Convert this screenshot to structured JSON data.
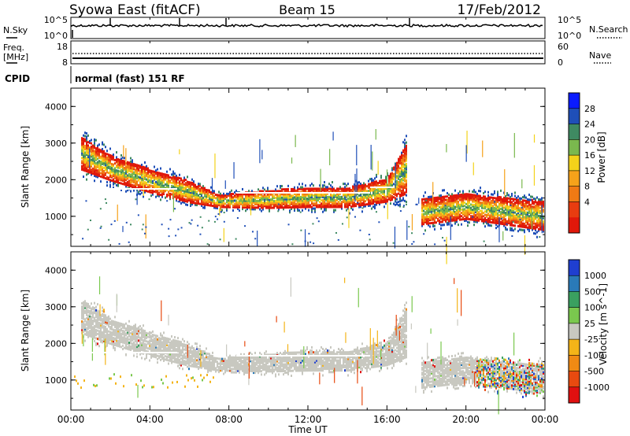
{
  "header": {
    "title_left": "Syowa East (fitACF)",
    "title_center": "Beam 15",
    "title_right": "17/Feb/2012"
  },
  "aux_panels": {
    "nsky_label": "N.Sky",
    "nsky_ticks": [
      "10^5",
      "10^0"
    ],
    "nsearch_label": "N.Search",
    "nsearch_ticks": [
      "10^5",
      "10^0"
    ],
    "freq_label_1": "Freq.",
    "freq_label_2": "[MHz]",
    "freq_ticks": [
      "18",
      "8"
    ],
    "nave_label": "Nave",
    "nave_ticks": [
      "60",
      "0"
    ],
    "cpid_label": "CPID",
    "cpid_text": "normal (fast) 151 RF"
  },
  "chart_data": [
    {
      "type": "heatmap",
      "name": "power",
      "ylabel": "Slant Range [km]",
      "ylim": [
        180,
        4500
      ],
      "yticks": [
        "4000",
        "3000",
        "2000",
        "1000"
      ],
      "colorbar_label": "Power [dB]",
      "colorbar_ticks": [
        "28",
        "24",
        "20",
        "16",
        "12",
        "8",
        "4"
      ],
      "colorbar_colors": [
        "#0a1bff",
        "#1f4fb8",
        "#3f8a62",
        "#7ab84e",
        "#f3d21a",
        "#f6a21a",
        "#f07a14",
        "#e83c10",
        "#e0180a"
      ],
      "xlim_hours": [
        0,
        24
      ],
      "echo_band": [
        {
          "hour": 0.5,
          "center_km": 2700,
          "width_km": 900
        },
        {
          "hour": 2,
          "center_km": 2300,
          "width_km": 700
        },
        {
          "hour": 4,
          "center_km": 1950,
          "width_km": 650
        },
        {
          "hour": 6,
          "center_km": 1650,
          "width_km": 600
        },
        {
          "hour": 7.5,
          "center_km": 1400,
          "width_km": 350
        },
        {
          "hour": 10,
          "center_km": 1450,
          "width_km": 500
        },
        {
          "hour": 12,
          "center_km": 1500,
          "width_km": 550
        },
        {
          "hour": 14,
          "center_km": 1500,
          "width_km": 550
        },
        {
          "hour": 16,
          "center_km": 1700,
          "width_km": 650
        },
        {
          "hour": 17,
          "center_km": 2300,
          "width_km": 1400
        },
        {
          "hour": 17.7,
          "center_km": 1100,
          "width_km": 700
        },
        {
          "hour": 20,
          "center_km": 1250,
          "width_km": 700
        },
        {
          "hour": 23.9,
          "center_km": 1000,
          "width_km": 800
        }
      ]
    },
    {
      "type": "heatmap",
      "name": "velocity",
      "ylabel": "Slant Range [km]",
      "xlabel": "Time UT",
      "ylim": [
        180,
        4500
      ],
      "yticks": [
        "4000",
        "3000",
        "2000",
        "1000"
      ],
      "xticks": [
        "00:00",
        "04:00",
        "08:00",
        "12:00",
        "16:00",
        "20:00",
        "00:00"
      ],
      "colorbar_label": "Velocity [m s^-1]",
      "colorbar_ticks": [
        "1000",
        "500",
        "100",
        "25",
        "-25",
        "-100",
        "-500",
        "-1000"
      ],
      "colorbar_colors": [
        "#1f3fd0",
        "#2a7ab8",
        "#3aa060",
        "#7ac84e",
        "#c8c8c0",
        "#f4b418",
        "#f08a14",
        "#e84a10",
        "#e01010"
      ],
      "ground_scatter_color": "#c8c8c0"
    }
  ]
}
